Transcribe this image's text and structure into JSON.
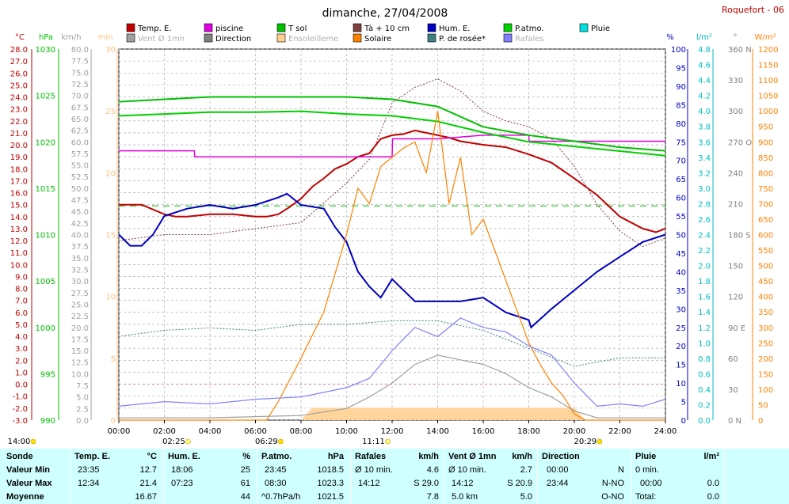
{
  "title": "dimanche, 27/04/2008",
  "station": "Roquefort - 06",
  "legend": [
    {
      "label": "Temp. E.",
      "color": "#c00000",
      "muted": false
    },
    {
      "label": "piscine",
      "color": "#e000e0",
      "muted": false
    },
    {
      "label": "T sol",
      "color": "#00c000",
      "muted": false
    },
    {
      "label": "Tà + 10 cm",
      "color": "#804040",
      "muted": false
    },
    {
      "label": "Hum. E.",
      "color": "#0000c0",
      "muted": false
    },
    {
      "label": "P.atmo.",
      "color": "#00d000",
      "muted": false
    },
    {
      "label": "Pluie",
      "color": "#00e0e0",
      "muted": false
    },
    {
      "label": "Vent Ø 1mn",
      "color": "#a0a0a0",
      "muted": true
    },
    {
      "label": "Direction",
      "color": "#808080",
      "muted": false
    },
    {
      "label": "Ensoleilleme",
      "color": "#ffd090",
      "muted": true
    },
    {
      "label": "Solaire",
      "color": "#ff8000",
      "muted": false
    },
    {
      "label": "P. de rosée*",
      "color": "#408080",
      "muted": false
    },
    {
      "label": "Rafales",
      "color": "#8080ff",
      "muted": true
    }
  ],
  "axes": {
    "temp": {
      "unit": "°C",
      "color": "#c00000",
      "ticks": [
        "28.0",
        "27.0",
        "26.0",
        "25.0",
        "24.0",
        "23.0",
        "22.0",
        "21.0",
        "20.0",
        "19.0",
        "18.0",
        "17.0",
        "16.0",
        "15.0",
        "14.0",
        "13.0",
        "12.0",
        "11.0",
        "10.0",
        "9.0",
        "8.0",
        "7.0",
        "6.0",
        "5.0",
        "4.0",
        "3.0",
        "2.0",
        "1.0",
        "0.0",
        "-1.0",
        "-2.0",
        "-3.0"
      ]
    },
    "pressure": {
      "unit": "hPa",
      "color": "#00c000",
      "ticks": [
        "1030",
        "1025",
        "1020",
        "1015",
        "1010",
        "1005",
        "1000",
        "995",
        "990"
      ]
    },
    "wind": {
      "unit": "km/h",
      "color": "#a0a0a0",
      "ticks": [
        "80.0",
        "77.5",
        "75.0",
        "72.5",
        "70.0",
        "67.5",
        "65.0",
        "62.5",
        "60.0",
        "57.5",
        "55.0",
        "52.5",
        "50.0",
        "47.5",
        "45.0",
        "42.5",
        "40.0",
        "37.5",
        "35.0",
        "32.5",
        "30.0",
        "27.5",
        "25.0",
        "22.5",
        "20.0",
        "17.5",
        "15.0",
        "12.5",
        "10.0",
        "7.5",
        "5.0",
        "2.5",
        "0.0"
      ]
    },
    "minutes": {
      "unit": "min",
      "color": "#ffc080",
      "ticks": [
        "30",
        "25",
        "20",
        "15",
        "10",
        "5",
        "0"
      ]
    },
    "humidity": {
      "unit": "%",
      "color": "#0000c0",
      "ticks": [
        "100",
        "95",
        "90",
        "85",
        "80",
        "75",
        "70",
        "65",
        "60",
        "55",
        "50",
        "45",
        "40",
        "35",
        "30",
        "25",
        "20",
        "15",
        "10",
        "5",
        "0"
      ]
    },
    "rain": {
      "unit": "l/m²",
      "color": "#00c0c0",
      "ticks": [
        "4.8",
        "4.6",
        "4.4",
        "4.2",
        "4.0",
        "3.8",
        "3.6",
        "3.4",
        "3.2",
        "3.0",
        "2.8",
        "2.6",
        "2.4",
        "2.2",
        "2.0",
        "1.8",
        "1.6",
        "1.4",
        "1.2",
        "1.0",
        "0.8",
        "0.6",
        "0.4",
        "0.2",
        "0.0"
      ]
    },
    "direction": {
      "unit": "°",
      "color": "#808080",
      "ticks": [
        "360 N",
        "330",
        "300",
        "270 O",
        "240",
        "210",
        "180 S",
        "150",
        "120",
        "90 E",
        "60",
        "30",
        "0 N"
      ]
    },
    "solar": {
      "unit": "W/m²",
      "color": "#ff8000",
      "ticks": [
        "1200",
        "1150",
        "1100",
        "1050",
        "1000",
        "950",
        "900",
        "850",
        "800",
        "750",
        "700",
        "650",
        "600",
        "550",
        "500",
        "450",
        "400",
        "350",
        "300",
        "250",
        "200",
        "150",
        "100",
        "50",
        "0"
      ]
    }
  },
  "time_ticks": [
    "00:00",
    "02:00",
    "04:00",
    "06:00",
    "08:00",
    "10:00",
    "12:00",
    "14:00",
    "16:00",
    "18:00",
    "20:00",
    "22:00",
    "24:00"
  ],
  "sun_events": [
    {
      "time": "14:00",
      "label": "14:00",
      "kind": "sun-icon"
    },
    {
      "time": "02:25",
      "label": "02:25",
      "kind": "moon-icon"
    },
    {
      "time": "06:29",
      "label": "06:29",
      "kind": "sun-icon"
    },
    {
      "time": "11:11",
      "label": "11:11",
      "kind": "moon-icon"
    },
    {
      "time": "20:29",
      "label": "20:29",
      "kind": "sun-icon"
    }
  ],
  "chart_data": {
    "type": "line",
    "x_range": [
      "00:00",
      "24:00"
    ],
    "series": [
      {
        "name": "Temp. E.",
        "axis": "temp",
        "color": "#c00000",
        "x": [
          "00:00",
          "01:00",
          "02:00",
          "02:30",
          "03:00",
          "04:00",
          "05:00",
          "06:00",
          "06:30",
          "07:00",
          "07:30",
          "08:00",
          "08:30",
          "09:00",
          "09:30",
          "10:00",
          "10:30",
          "11:00",
          "11:30",
          "12:00",
          "12:30",
          "13:00",
          "13:30",
          "14:00",
          "14:30",
          "15:00",
          "16:00",
          "17:00",
          "18:00",
          "19:00",
          "20:00",
          "21:00",
          "22:00",
          "23:00",
          "23:35",
          "24:00"
        ],
        "y": [
          15.0,
          15.0,
          14.2,
          14.0,
          14.0,
          14.2,
          14.2,
          14.0,
          14.0,
          14.2,
          14.8,
          15.5,
          16.5,
          17.2,
          18.0,
          18.4,
          19.0,
          19.3,
          20.5,
          20.8,
          20.9,
          21.2,
          21.0,
          20.8,
          20.6,
          20.3,
          20.0,
          19.8,
          19.2,
          18.5,
          17.2,
          15.8,
          14.0,
          13.0,
          12.7,
          13.0
        ]
      },
      {
        "name": "piscine",
        "axis": "temp",
        "color": "#e000e0",
        "x": [
          "00:00",
          "03:19",
          "03:20",
          "12:00",
          "12:01",
          "14:00",
          "16:00",
          "18:00",
          "18:01",
          "24:00"
        ],
        "y": [
          19.5,
          19.5,
          19.0,
          19.0,
          20.5,
          20.5,
          20.8,
          20.8,
          20.3,
          20.3
        ]
      },
      {
        "name": "T sol",
        "axis": "temp",
        "color": "#00c000",
        "x": [
          "00:00",
          "02:00",
          "04:00",
          "06:00",
          "08:00",
          "10:00",
          "12:00",
          "14:00",
          "16:00",
          "18:00",
          "20:00",
          "22:00",
          "24:00"
        ],
        "y": [
          23.6,
          23.8,
          24.0,
          24.0,
          24.0,
          24.0,
          23.8,
          23.2,
          21.5,
          20.8,
          20.3,
          19.8,
          19.5
        ]
      },
      {
        "name": "Tà + 10 cm",
        "axis": "temp",
        "color": "#804040",
        "x": [
          "00:00",
          "02:00",
          "04:00",
          "06:00",
          "08:00",
          "10:00",
          "11:00",
          "12:00",
          "13:00",
          "14:00",
          "15:00",
          "16:00",
          "17:00",
          "18:00",
          "19:00",
          "20:00",
          "21:00",
          "22:00",
          "23:00",
          "24:00"
        ],
        "y": [
          12.0,
          12.5,
          12.5,
          13.0,
          13.5,
          16.8,
          18.8,
          23.5,
          24.8,
          25.5,
          24.5,
          22.8,
          22.0,
          21.5,
          20.5,
          18.2,
          15.0,
          12.8,
          11.5,
          12.2
        ]
      },
      {
        "name": "Hum. E.",
        "axis": "humidity",
        "color": "#0000c0",
        "x": [
          "00:00",
          "00:30",
          "01:00",
          "01:30",
          "02:00",
          "03:00",
          "04:00",
          "05:00",
          "06:00",
          "07:00",
          "07:23",
          "08:00",
          "09:00",
          "09:30",
          "10:00",
          "10:30",
          "11:00",
          "11:30",
          "12:00",
          "13:00",
          "14:00",
          "15:00",
          "16:00",
          "17:00",
          "18:00",
          "18:06",
          "19:00",
          "20:00",
          "21:00",
          "22:00",
          "23:00",
          "24:00"
        ],
        "y": [
          50,
          47,
          47,
          50,
          55,
          57,
          58,
          57,
          58,
          60,
          61,
          58,
          57,
          52,
          48,
          40,
          36,
          33,
          38,
          32,
          32,
          32,
          33,
          29,
          27,
          25,
          30,
          35,
          40,
          44,
          48,
          50
        ]
      },
      {
        "name": "P.atmo.",
        "axis": "pressure",
        "color": "#00d000",
        "x": [
          "00:00",
          "02:00",
          "04:00",
          "06:00",
          "08:00",
          "10:00",
          "12:00",
          "14:00",
          "16:00",
          "18:00",
          "20:00",
          "22:00",
          "24:00"
        ],
        "y": [
          1022.8,
          1023.0,
          1023.2,
          1023.2,
          1023.3,
          1023.0,
          1022.8,
          1022.2,
          1021.0,
          1020.0,
          1019.5,
          1019.0,
          1018.5
        ]
      },
      {
        "name": "P. de rosée*",
        "axis": "temp",
        "color": "#408080",
        "x": [
          "00:00",
          "02:00",
          "04:00",
          "06:00",
          "08:00",
          "10:00",
          "12:00",
          "14:00",
          "16:00",
          "18:00",
          "20:00",
          "22:00",
          "24:00"
        ],
        "y": [
          4.0,
          4.5,
          4.7,
          4.5,
          5.0,
          5.0,
          5.3,
          5.3,
          4.5,
          3.0,
          1.5,
          2.2,
          2.2
        ]
      },
      {
        "name": "Solaire",
        "axis": "solar",
        "color": "#ff8000",
        "x": [
          "00:00",
          "06:29",
          "07:00",
          "08:00",
          "09:00",
          "10:00",
          "10:30",
          "11:00",
          "11:30",
          "12:00",
          "12:30",
          "13:00",
          "13:30",
          "14:00",
          "14:30",
          "15:00",
          "15:30",
          "16:00",
          "16:30",
          "17:00",
          "17:30",
          "18:00",
          "18:30",
          "19:00",
          "19:30",
          "20:00",
          "20:29",
          "24:00"
        ],
        "y": [
          0,
          0,
          60,
          200,
          350,
          600,
          750,
          700,
          820,
          850,
          880,
          900,
          800,
          1000,
          700,
          850,
          600,
          650,
          550,
          450,
          350,
          250,
          180,
          120,
          80,
          20,
          0,
          0
        ]
      },
      {
        "name": "Rafales",
        "axis": "wind",
        "color": "#8080ff",
        "x": [
          "00:00",
          "02:00",
          "04:00",
          "06:00",
          "08:00",
          "10:00",
          "11:00",
          "12:00",
          "13:00",
          "14:00",
          "15:00",
          "16:00",
          "17:00",
          "18:00",
          "19:00",
          "20:00",
          "21:00",
          "22:00",
          "23:00",
          "24:00"
        ],
        "y": [
          3.0,
          4.0,
          3.5,
          4.5,
          5.0,
          7.0,
          9.0,
          15.0,
          20.0,
          18.0,
          22.0,
          20.0,
          19.0,
          16.0,
          14.0,
          8.0,
          3.0,
          3.5,
          3.0,
          4.5
        ]
      },
      {
        "name": "Vent Ø 1mn",
        "axis": "wind",
        "color": "#a0a0a0",
        "x": [
          "00:00",
          "04:00",
          "08:00",
          "10:00",
          "11:00",
          "12:00",
          "13:00",
          "14:00",
          "15:00",
          "16:00",
          "17:00",
          "18:00",
          "19:00",
          "20:00",
          "21:00",
          "24:00"
        ],
        "y": [
          0.5,
          0.5,
          1.0,
          2.5,
          5.0,
          8.0,
          12.0,
          14.0,
          13.0,
          12.0,
          10.0,
          7.0,
          5.0,
          2.0,
          0.5,
          0.5
        ]
      },
      {
        "name": "Ensoleilleme",
        "axis": "minutes",
        "color": "#ffd090",
        "x": [
          "00:00",
          "08:00",
          "08:30",
          "20:00",
          "20:29",
          "24:00"
        ],
        "y": [
          0,
          0,
          1,
          1,
          0,
          0
        ]
      }
    ],
    "reference_lines": [
      {
        "axis": "temp",
        "value": 14.9,
        "color": "#00c000",
        "dash": "8,6"
      }
    ]
  },
  "summary": {
    "headers": {
      "sonde": "Sonde",
      "temp": "Temp. E.",
      "temp_unit": "°C",
      "hum": "Hum. E.",
      "hum_unit": "%",
      "patmo": "P.atmo.",
      "patmo_unit": "hPa",
      "rafales": "Rafales",
      "rafales_unit": "km/h",
      "vent": "Vent Ø 1mn",
      "vent_unit": "km/h",
      "direction": "Direction",
      "pluie": "Pluie",
      "pluie_unit": "l/m²"
    },
    "rows": [
      {
        "label": "Valeur Min",
        "temp_time": "23:35",
        "temp_val": "12.7",
        "hum_time": "18:06",
        "hum_val": "25",
        "patmo_time": "23:45",
        "patmo_val": "1018.5",
        "raf_label": "Ø 10 min.",
        "raf_val": "4.6",
        "vent_label": "Ø 10 min.",
        "vent_val": "2.7",
        "dir_time": "00:00",
        "dir_val": "N",
        "pluie_label": "0 min.",
        "pluie_val": ""
      },
      {
        "label": "Valeur Max",
        "temp_time": "12:34",
        "temp_val": "21.4",
        "hum_time": "07:23",
        "hum_val": "61",
        "patmo_time": "08:30",
        "patmo_val": "1023.3",
        "raf_label": "14:12",
        "raf_val": "S 29.0",
        "vent_label": "14:12",
        "vent_val": "S 20.9",
        "dir_time": "23:44",
        "dir_val": "N-NO",
        "pluie_label": "00:00",
        "pluie_val": "0.0"
      },
      {
        "label": "Moyenne",
        "temp_time": "",
        "temp_val": "16.67",
        "hum_time": "",
        "hum_val": "44",
        "patmo_time": "^0.7hPa/h",
        "patmo_val": "1021.5",
        "raf_label": "",
        "raf_val": "7.8",
        "vent_label": "5.0 km",
        "vent_val": "5.0",
        "dir_time": "",
        "dir_val": "O-NO",
        "pluie_label": "Total:",
        "pluie_val": "0.0"
      }
    ]
  }
}
